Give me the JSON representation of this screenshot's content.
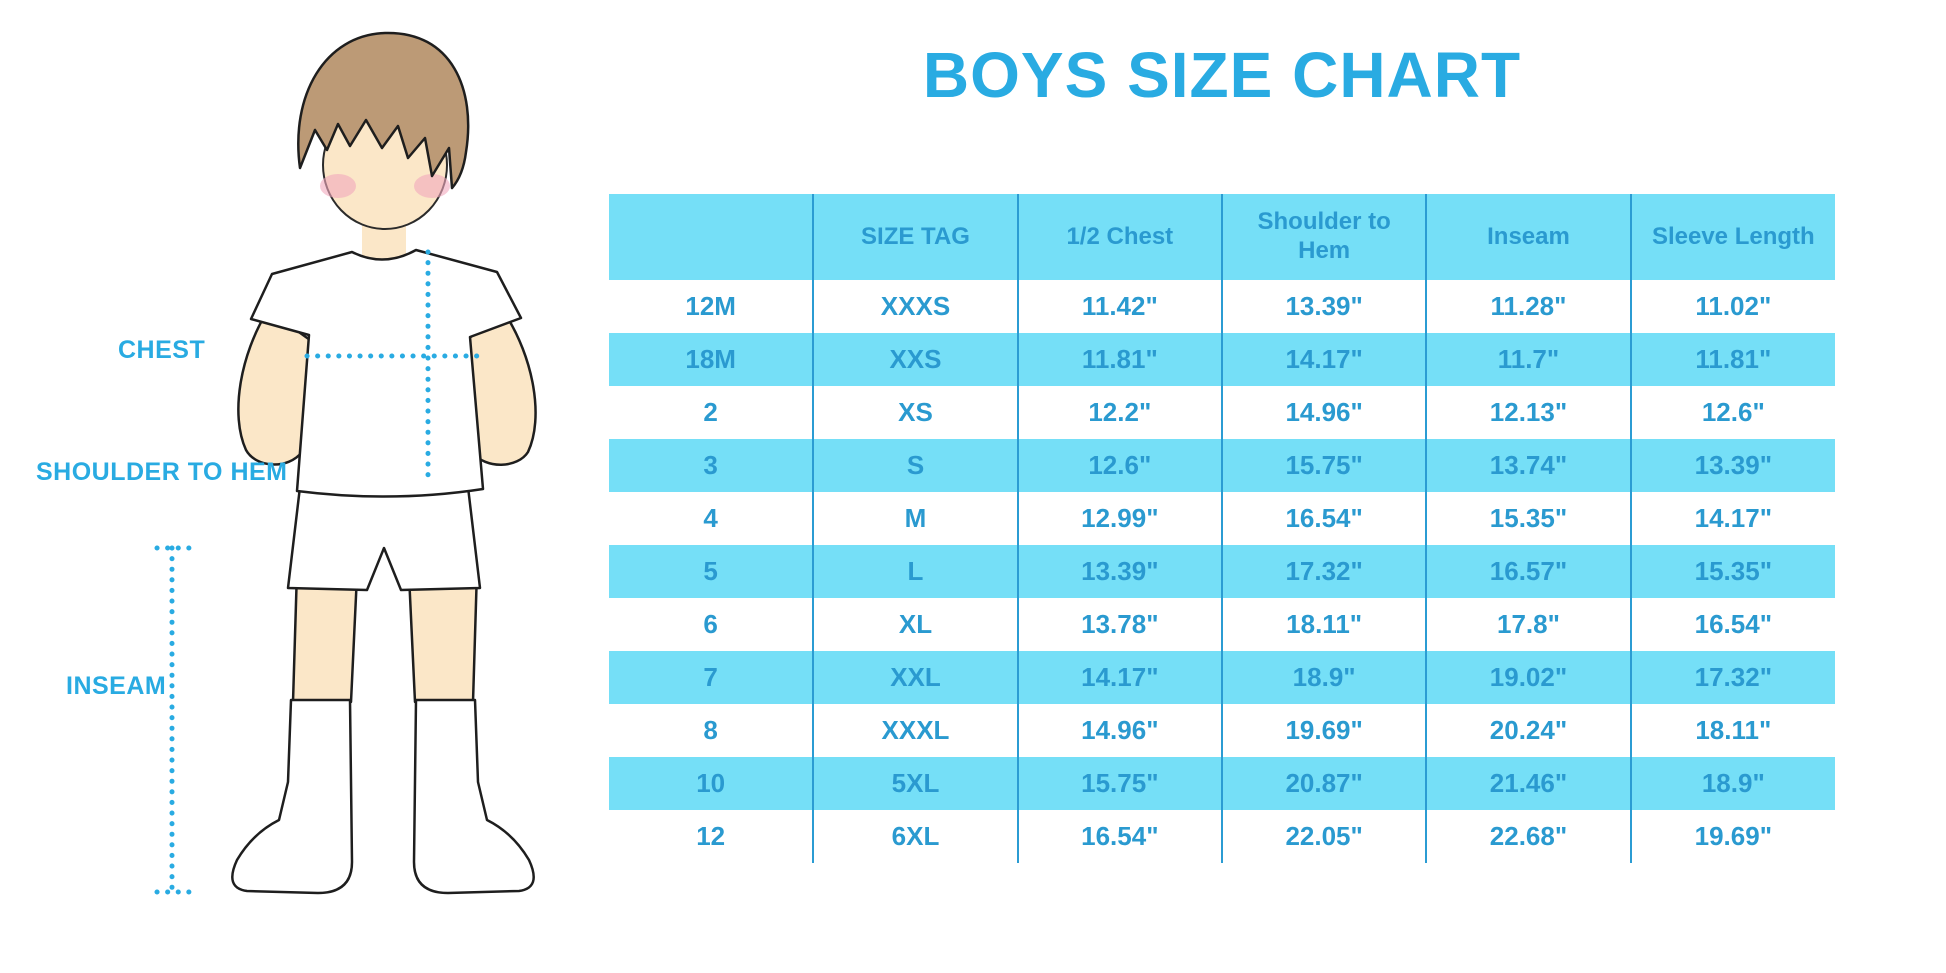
{
  "title": "BOYS SIZE CHART",
  "diagram_labels": {
    "chest": "CHEST",
    "shoulder_to_hem": "SHOULDER TO HEM",
    "inseam": "INSEAM"
  },
  "chart_data": {
    "type": "table",
    "title": "BOYS SIZE CHART",
    "columns": [
      "",
      "SIZE TAG",
      "1/2 Chest",
      "Shoulder to Hem",
      "Inseam",
      "Sleeve Length"
    ],
    "rows": [
      [
        "12M",
        "XXXS",
        "11.42\"",
        "13.39\"",
        "11.28\"",
        "11.02\""
      ],
      [
        "18M",
        "XXS",
        "11.81\"",
        "14.17\"",
        "11.7\"",
        "11.81\""
      ],
      [
        "2",
        "XS",
        "12.2\"",
        "14.96\"",
        "12.13\"",
        "12.6\""
      ],
      [
        "3",
        "S",
        "12.6\"",
        "15.75\"",
        "13.74\"",
        "13.39\""
      ],
      [
        "4",
        "M",
        "12.99\"",
        "16.54\"",
        "15.35\"",
        "14.17\""
      ],
      [
        "5",
        "L",
        "13.39\"",
        "17.32\"",
        "16.57\"",
        "15.35\""
      ],
      [
        "6",
        "XL",
        "13.78\"",
        "18.11\"",
        "17.8\"",
        "16.54\""
      ],
      [
        "7",
        "XXL",
        "14.17\"",
        "18.9\"",
        "19.02\"",
        "17.32\""
      ],
      [
        "8",
        "XXXL",
        "14.96\"",
        "19.69\"",
        "20.24\"",
        "18.11\""
      ],
      [
        "10",
        "5XL",
        "15.75\"",
        "20.87\"",
        "21.46\"",
        "18.9\""
      ],
      [
        "12",
        "6XL",
        "16.54\"",
        "22.05\"",
        "22.68\"",
        "19.69\""
      ]
    ],
    "layout": {
      "striped": true,
      "stripe_pattern": "header and even data rows shaded",
      "grid": "vertical dividers only"
    }
  },
  "colors": {
    "accent": "#29ABE2",
    "table_text": "#2A9AD0",
    "stripe": "#75DFF7",
    "divider": "#2B9CD3",
    "skin": "#FBE7C8",
    "hair": "#BC9A76",
    "blush": "#F2A9BC",
    "outline": "#1E1E1E",
    "dotted_line": "#29ABE2"
  }
}
